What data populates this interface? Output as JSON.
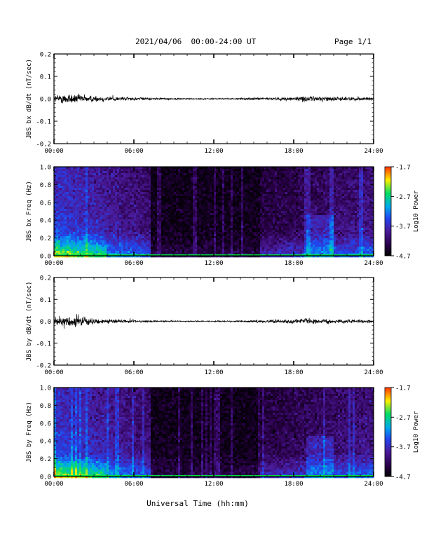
{
  "header": {
    "title": "2021/04/06  00:00-24:00 UT",
    "page": "Page 1/1"
  },
  "xaxis": {
    "label": "Universal Time (hh:mm)",
    "ticks": [
      "00:00",
      "06:00",
      "12:00",
      "18:00",
      "24:00"
    ],
    "range_hours": [
      0,
      24
    ]
  },
  "colors": {
    "background": "#ffffff",
    "axes": "#000000",
    "colormap": [
      "#000000",
      "#2a0048",
      "#4a1a9a",
      "#2244ee",
      "#00aaee",
      "#00dd66",
      "#ffee00",
      "#ff3300"
    ]
  },
  "colorbar": {
    "label": "Log10 Power",
    "ticks": [
      "-1.7",
      "-2.7",
      "-3.7",
      "-4.7"
    ],
    "range": [
      -4.7,
      -1.7
    ]
  },
  "chart_data": [
    {
      "type": "line",
      "id": "bx-dbdt",
      "ylabel": "JBS bx dB/dt (nT/sec)",
      "ylim": [
        -0.2,
        0.2
      ],
      "yticks": [
        "0.2",
        "0.1",
        "0.0",
        "-0.1",
        "-0.2"
      ],
      "series": [
        {
          "envelope_hours": [
            0,
            1,
            2,
            3,
            4,
            5,
            6,
            7,
            8,
            9,
            10,
            11,
            12,
            13,
            14,
            15,
            16,
            17,
            18,
            19,
            20,
            21,
            22,
            23,
            24
          ],
          "amplitude": [
            0.025,
            0.04,
            0.03,
            0.022,
            0.018,
            0.015,
            0.012,
            0.009,
            0.006,
            0.005,
            0.004,
            0.004,
            0.004,
            0.004,
            0.005,
            0.008,
            0.009,
            0.011,
            0.015,
            0.02,
            0.018,
            0.015,
            0.013,
            0.015,
            0.012
          ]
        }
      ]
    },
    {
      "type": "heatmap",
      "id": "bx-freq",
      "ylabel": "JBS bx Freq (Hz)",
      "ylim": [
        0.0,
        1.0
      ],
      "yticks": [
        "1.0",
        "0.8",
        "0.6",
        "0.4",
        "0.2",
        "0.0"
      ],
      "quiet_interval_hours": [
        7.2,
        15.5
      ]
    },
    {
      "type": "line",
      "id": "by-dbdt",
      "ylabel": "JBS by dB/dt (nT/sec)",
      "ylim": [
        -0.2,
        0.2
      ],
      "yticks": [
        "0.2",
        "0.1",
        "0.0",
        "-0.1",
        "-0.2"
      ],
      "series": [
        {
          "envelope_hours": [
            0,
            1,
            2,
            3,
            4,
            5,
            6,
            7,
            8,
            9,
            10,
            11,
            12,
            13,
            14,
            15,
            16,
            17,
            18,
            19,
            20,
            21,
            22,
            23,
            24
          ],
          "amplitude": [
            0.03,
            0.045,
            0.032,
            0.02,
            0.016,
            0.013,
            0.011,
            0.009,
            0.006,
            0.005,
            0.004,
            0.004,
            0.004,
            0.005,
            0.006,
            0.008,
            0.01,
            0.012,
            0.016,
            0.018,
            0.015,
            0.014,
            0.012,
            0.012,
            0.011
          ]
        }
      ]
    },
    {
      "type": "heatmap",
      "id": "by-freq",
      "ylabel": "JBS by Freq (Hz)",
      "ylim": [
        0.0,
        1.0
      ],
      "yticks": [
        "1.0",
        "0.8",
        "0.6",
        "0.4",
        "0.2",
        "0.0"
      ],
      "quiet_interval_hours": [
        7.2,
        15.5
      ]
    }
  ]
}
